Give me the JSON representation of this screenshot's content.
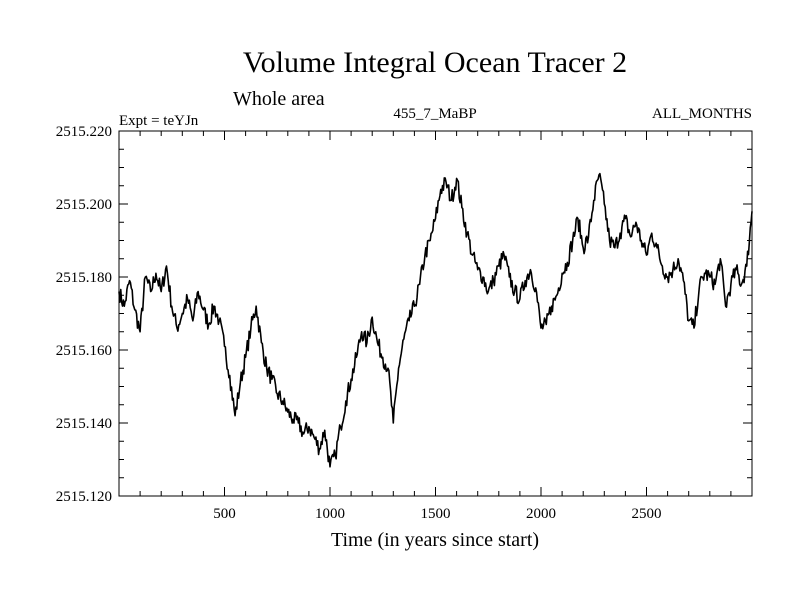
{
  "chart_data": {
    "type": "line",
    "title": "Volume Integral Ocean Tracer 2",
    "subtitle": "Whole area",
    "annotations": {
      "left": "Expt = teYJn",
      "center": "455_7_MaBP",
      "right": "ALL_MONTHS"
    },
    "xlabel": "Time (in years since start)",
    "ylabel": "",
    "xlim": [
      0,
      3000
    ],
    "ylim": [
      2515.12,
      2515.22
    ],
    "xticks": [
      500,
      1000,
      1500,
      2000,
      2500
    ],
    "xtick_labels": [
      "500",
      "1000",
      "1500",
      "2000",
      "2500"
    ],
    "yticks": [
      2515.12,
      2515.14,
      2515.16,
      2515.18,
      2515.2,
      2515.22
    ],
    "ytick_labels": [
      "2515.120",
      "2515.140",
      "2515.160",
      "2515.180",
      "2515.200",
      "2515.220"
    ],
    "grid": false,
    "series": [
      {
        "color": "#000000",
        "x": [
          0,
          25,
          50,
          75,
          100,
          125,
          150,
          175,
          200,
          225,
          250,
          275,
          300,
          325,
          350,
          375,
          400,
          425,
          450,
          475,
          500,
          525,
          550,
          575,
          600,
          625,
          650,
          675,
          700,
          725,
          750,
          775,
          800,
          825,
          850,
          875,
          900,
          925,
          950,
          975,
          1000,
          1025,
          1050,
          1075,
          1100,
          1125,
          1150,
          1175,
          1200,
          1225,
          1250,
          1275,
          1300,
          1325,
          1350,
          1375,
          1400,
          1425,
          1450,
          1475,
          1500,
          1525,
          1550,
          1575,
          1600,
          1625,
          1650,
          1675,
          1700,
          1725,
          1750,
          1775,
          1800,
          1825,
          1850,
          1875,
          1900,
          1925,
          1950,
          1975,
          2000,
          2025,
          2050,
          2075,
          2100,
          2125,
          2150,
          2175,
          2200,
          2225,
          2250,
          2275,
          2300,
          2325,
          2350,
          2375,
          2400,
          2425,
          2450,
          2475,
          2500,
          2525,
          2550,
          2575,
          2600,
          2625,
          2650,
          2675,
          2700,
          2725,
          2750,
          2775,
          2800,
          2825,
          2850,
          2875,
          2900,
          2925,
          2950,
          2975,
          3000
        ],
        "y": [
          2515.176,
          2515.172,
          2515.179,
          2515.171,
          2515.165,
          2515.18,
          2515.176,
          2515.181,
          2515.176,
          2515.183,
          2515.172,
          2515.166,
          2515.17,
          2515.174,
          2515.168,
          2515.176,
          2515.171,
          2515.167,
          2515.172,
          2515.168,
          2515.161,
          2515.153,
          2515.142,
          2515.151,
          2515.158,
          2515.166,
          2515.172,
          2515.162,
          2515.155,
          2515.152,
          2515.148,
          2515.146,
          2515.143,
          2515.141,
          2515.14,
          2515.137,
          2515.139,
          2515.136,
          2515.133,
          2515.138,
          2515.128,
          2515.131,
          2515.139,
          2515.146,
          2515.152,
          2515.158,
          2515.165,
          2515.162,
          2515.169,
          2515.162,
          2515.158,
          2515.155,
          2515.14,
          2515.155,
          2515.163,
          2515.168,
          2515.172,
          2515.178,
          2515.186,
          2515.19,
          2515.196,
          2515.204,
          2515.206,
          2515.201,
          2515.207,
          2515.199,
          2515.192,
          2515.186,
          2515.182,
          2515.18,
          2515.176,
          2515.179,
          2515.183,
          2515.186,
          2515.18,
          2515.176,
          2515.174,
          2515.179,
          2515.182,
          2515.177,
          2515.166,
          2515.167,
          2515.172,
          2515.175,
          2515.181,
          2515.184,
          2515.19,
          2515.196,
          2515.188,
          2515.191,
          2515.201,
          2515.208,
          2515.2,
          2515.19,
          2515.188,
          2515.192,
          2515.196,
          2515.191,
          2515.195,
          2515.19,
          2515.186,
          2515.192,
          2515.188,
          2515.183,
          2515.18,
          2515.182,
          2515.185,
          2515.179,
          2515.168,
          2515.166,
          2515.177,
          2515.181,
          2515.18,
          2515.178,
          2515.185,
          2515.172,
          2515.178,
          2515.182,
          2515.178,
          2515.183,
          2515.198
        ]
      }
    ]
  }
}
